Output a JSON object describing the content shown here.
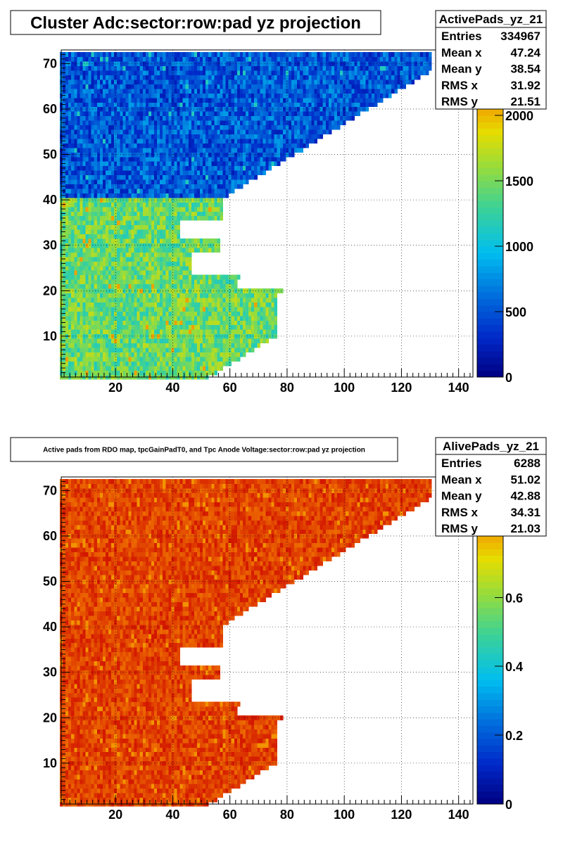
{
  "chart_data": [
    {
      "type": "heatmap",
      "title": "Cluster Adc:sector:row:pad yz projection",
      "xlabel": "",
      "ylabel": "",
      "xlim": [
        1,
        145
      ],
      "ylim": [
        1,
        73
      ],
      "xticks": [
        20,
        40,
        60,
        80,
        100,
        120,
        140
      ],
      "yticks": [
        10,
        20,
        30,
        40,
        50,
        60,
        70
      ],
      "grid": true,
      "colorbar": {
        "min": 0,
        "max": 2500,
        "ticks": [
          0,
          500,
          1000,
          1500,
          2000
        ]
      },
      "region_values": {
        "inner_rows_1_40": 1450,
        "outer_rows_41_72": 520
      },
      "stats": {
        "name": "ActivePads_yz_21",
        "rows": [
          {
            "label": "Entries",
            "value": "334967"
          },
          {
            "label": "Mean x",
            "value": "47.24"
          },
          {
            "label": "Mean y",
            "value": "38.54"
          },
          {
            "label": "RMS x",
            "value": "31.92"
          },
          {
            "label": "RMS y",
            "value": "21.51"
          }
        ]
      }
    },
    {
      "type": "heatmap",
      "title": "Active pads from RDO map, tpcGainPadT0,  and Tpc Anode Voltage:sector:row:pad yz projection",
      "xlabel": "",
      "ylabel": "",
      "xlim": [
        1,
        145
      ],
      "ylim": [
        1,
        73
      ],
      "xticks": [
        20,
        40,
        60,
        80,
        100,
        120,
        140
      ],
      "yticks": [
        10,
        20,
        30,
        40,
        50,
        60,
        70
      ],
      "grid": true,
      "colorbar": {
        "min": 0,
        "max": 0.95,
        "ticks": [
          0,
          0.2,
          0.4,
          0.6,
          0.8
        ]
      },
      "region_values": {
        "inner_rows_1_40": 0.9,
        "outer_rows_41_72": 0.9
      },
      "stats": {
        "name": "AlivePads_yz_21",
        "rows": [
          {
            "label": "Entries",
            "value": "6288"
          },
          {
            "label": "Mean x",
            "value": "51.02"
          },
          {
            "label": "Mean y",
            "value": "42.88"
          },
          {
            "label": "RMS x",
            "value": "34.31"
          },
          {
            "label": "RMS y",
            "value": "21.03"
          }
        ]
      }
    }
  ]
}
